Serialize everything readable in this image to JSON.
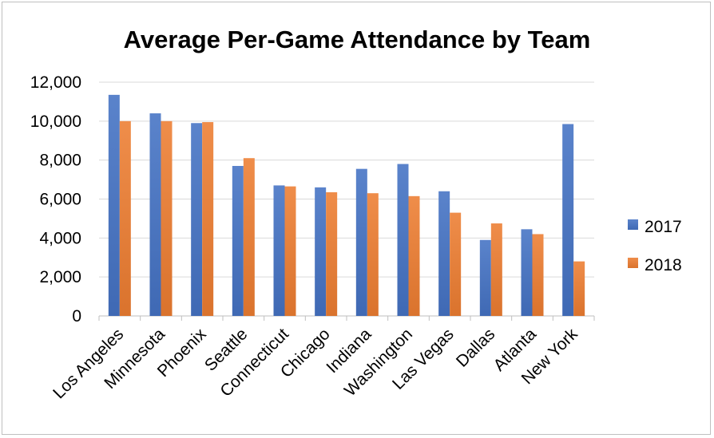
{
  "chart_data": {
    "type": "bar",
    "title": "Average Per-Game Attendance by Team",
    "xlabel": "",
    "ylabel": "",
    "ylim": [
      0,
      12000
    ],
    "yticks": [
      0,
      2000,
      4000,
      6000,
      8000,
      10000,
      12000
    ],
    "ytick_labels": [
      "0",
      "2,000",
      "4,000",
      "6,000",
      "8,000",
      "10,000",
      "12,000"
    ],
    "grid": true,
    "legend_position": "right",
    "categories": [
      "Los Angeles",
      "Minnesota",
      "Phoenix",
      "Seattle",
      "Connecticut",
      "Chicago",
      "Indiana",
      "Washington",
      "Las Vegas",
      "Dallas",
      "Atlanta",
      "New York"
    ],
    "series": [
      {
        "name": "2017",
        "color": "#4472c4",
        "values": [
          11350,
          10400,
          9900,
          7700,
          6700,
          6600,
          7550,
          7800,
          6400,
          3900,
          4450,
          9850
        ]
      },
      {
        "name": "2018",
        "color": "#ed7d31",
        "values": [
          10000,
          10000,
          9950,
          8100,
          6650,
          6350,
          6300,
          6150,
          5300,
          4750,
          4200,
          2800
        ]
      }
    ]
  }
}
